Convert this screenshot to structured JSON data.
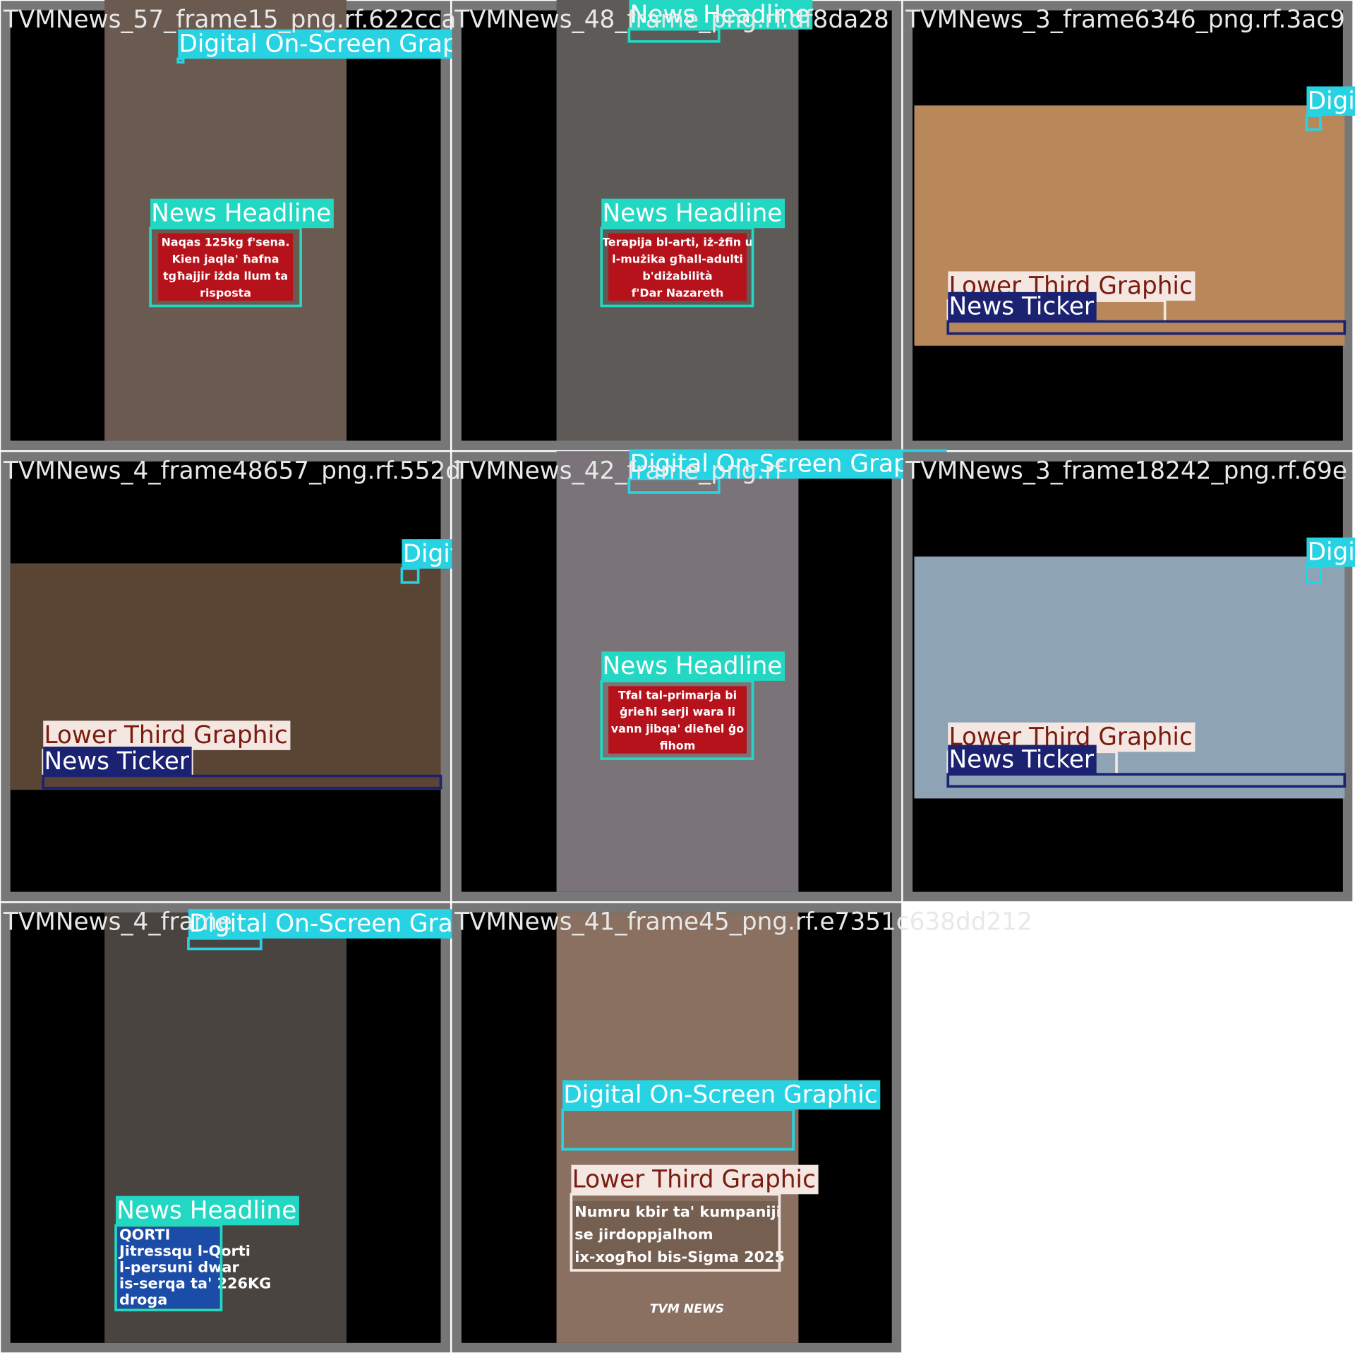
{
  "tiles": [
    {
      "filename": "TVMNews_57_frame15_png.rf.622cca",
      "boxes": [
        {
          "label": "Digital On-Screen Graphic"
        },
        {
          "label": "News Headline"
        }
      ],
      "overlay": {
        "lines": [
          "Naqas 125kg f'sena.",
          "Kien jaqla' ħafna",
          "tgħajjir iżda llum ta",
          "risposta"
        ]
      }
    },
    {
      "filename": "TVMNews_48_frame_png.rf.df8da28",
      "boxes": [
        {
          "label": "News Headline"
        },
        {
          "label": "News Headline"
        }
      ],
      "overlay": {
        "lines": [
          "Terapija bl-arti, iż-żfin u",
          "l-mużika għall-adulti",
          "b'diżabilità",
          "f'Dar Nazareth"
        ]
      }
    },
    {
      "filename": "TVMNews_3_frame6346_png.rf.3ac9",
      "boxes": [
        {
          "label": "Digital On-Screen Graphic"
        },
        {
          "label": "Lower Third Graphic"
        },
        {
          "label": "News Ticker"
        }
      ]
    },
    {
      "filename": "TVMNews_4_frame48657_png.rf.552d",
      "boxes": [
        {
          "label": "Digital On-Screen Graphic"
        },
        {
          "label": "Lower Third Graphic"
        },
        {
          "label": "News Ticker"
        }
      ]
    },
    {
      "filename": "TVMNews_42_frame_png.rf",
      "boxes": [
        {
          "label": "Digital On-Screen Graphic"
        },
        {
          "label": "News Headline"
        }
      ],
      "overlay": {
        "lines": [
          "Tfal tal-primarja bi",
          "ġrieħi serji wara li",
          "vann jibqa' dieħel ġo",
          "fihom"
        ]
      }
    },
    {
      "filename": "TVMNews_3_frame18242_png.rf.69e",
      "boxes": [
        {
          "label": "Digital On-Screen Graphic"
        },
        {
          "label": "Lower Third Graphic"
        },
        {
          "label": "News Ticker"
        }
      ]
    },
    {
      "filename": "TVMNews_4_frame",
      "boxes": [
        {
          "label": "Digital On-Screen Graphic"
        },
        {
          "label": "News Headline"
        }
      ],
      "overlay": {
        "lines": [
          "QORTI",
          "Jitressqu l-Qorti",
          "l-persuni dwar",
          "is-serqa ta' 226KG",
          "droga"
        ]
      }
    },
    {
      "filename": "TVMNews_41_frame45_png.rf.e7351c638dd212",
      "boxes": [
        {
          "label": "Digital On-Screen Graphic"
        },
        {
          "label": "Lower Third Graphic"
        }
      ],
      "overlay": {
        "lines": [
          "Numru kbir ta' kumpaniji",
          "se jirdoppjalhom",
          "ix-xogħol bis-Sigma 2025"
        ]
      },
      "logo": "TVM NEWS"
    }
  ]
}
